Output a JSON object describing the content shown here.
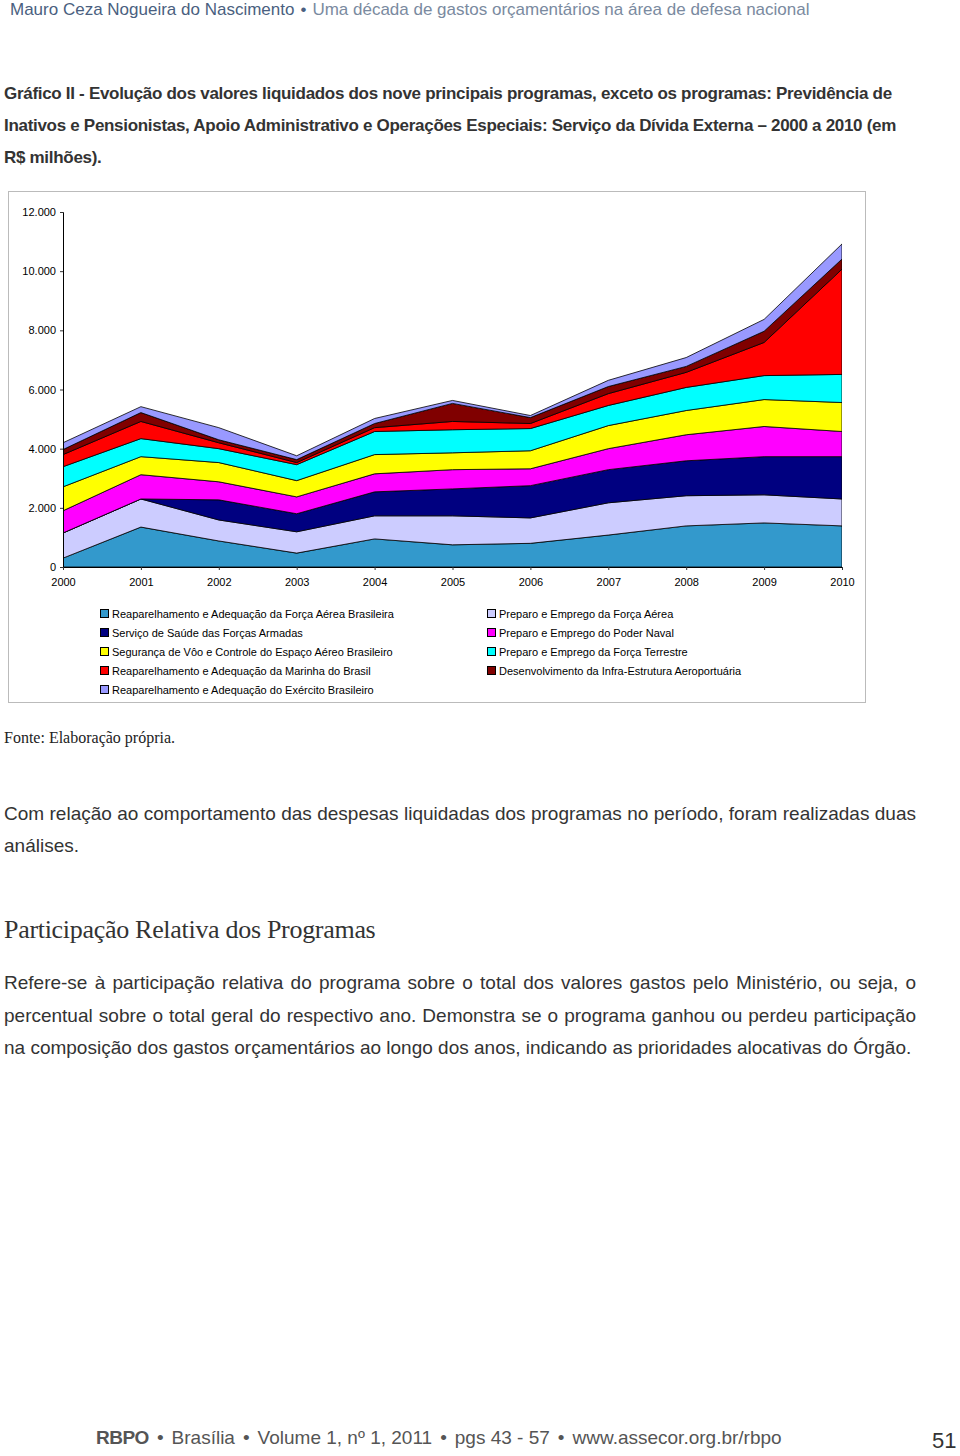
{
  "header": {
    "items": [
      "Mauro Ceza Nogueira do Nascimento",
      "Uma década de gastos orçamentários na área de defesa nacional"
    ],
    "separator": "•"
  },
  "figure": {
    "title": "Gráfico II - Evolução dos valores liquidados dos nove principais programas, exceto os programas: Previdência de Inativos e Pensionistas, Apoio Administrativo e Operações Especiais: Serviço da Dívida Externa – 2000 a 2010 (em R$ milhões).",
    "source": "Fonte: Elaboração própria."
  },
  "chart_data": {
    "type": "area",
    "stacked": true,
    "categories": [
      "2000",
      "2001",
      "2002",
      "2003",
      "2004",
      "2005",
      "2006",
      "2007",
      "2008",
      "2009",
      "2010"
    ],
    "ylim": [
      0,
      12000
    ],
    "yticks": [
      0,
      {
        "value": 2000,
        "label": "2.000"
      },
      {
        "value": 4000,
        "label": "4.000"
      },
      {
        "value": 6000,
        "label": "6.000"
      },
      {
        "value": 8000,
        "label": "8.000"
      },
      {
        "value": 10000,
        "label": "10.000"
      },
      {
        "value": 12000,
        "label": "12.000"
      }
    ],
    "series": [
      {
        "name": "Reaparelhamento e Adequação da Força Aérea Brasileira",
        "color": "#3399cc",
        "values": [
          300,
          1350,
          880,
          470,
          950,
          750,
          800,
          1080,
          1390,
          1490,
          1390
        ]
      },
      {
        "name": "Preparo e Emprego da Força Aérea",
        "color": "#ccccff",
        "values": [
          850,
          950,
          710,
          720,
          780,
          980,
          860,
          1090,
          1020,
          950,
          910
        ]
      },
      {
        "name": "Serviço de Saúde das Forças Armadas",
        "color": "#000080",
        "values": [
          0,
          0,
          680,
          610,
          810,
          910,
          1090,
          1120,
          1180,
          1290,
          1430
        ]
      },
      {
        "name": "Preparo e Emprego do Poder Naval",
        "color": "#ff00ff",
        "values": [
          750,
          820,
          610,
          570,
          610,
          650,
          570,
          710,
          880,
          1020,
          850
        ]
      },
      {
        "name": "Segurança de Vôo e Controle do Espaço Aéreo Brasileiro",
        "color": "#ffff00",
        "values": [
          810,
          610,
          650,
          550,
          650,
          570,
          610,
          780,
          820,
          910,
          980
        ]
      },
      {
        "name": "Preparo e Emprego da Força Terrestre",
        "color": "#00ffff",
        "values": [
          680,
          610,
          470,
          540,
          780,
          780,
          750,
          680,
          780,
          810,
          950
        ]
      },
      {
        "name": "Reaparelhamento e Adequação da Marinha do Brasil",
        "color": "#ff0000",
        "values": [
          410,
          580,
          200,
          70,
          130,
          280,
          170,
          400,
          510,
          1120,
          3560
        ]
      },
      {
        "name": "Desenvolvimento da Infra-Estrutura Aeroportuária",
        "color": "#800000",
        "values": [
          170,
          300,
          100,
          100,
          140,
          610,
          200,
          240,
          200,
          380,
          340
        ]
      },
      {
        "name": "Reaparelhamento e Adequação do Exército Brasileiro",
        "color": "#9999ff",
        "values": [
          230,
          200,
          410,
          130,
          170,
          100,
          70,
          210,
          300,
          400,
          510
        ]
      }
    ]
  },
  "body": {
    "intro": "Com relação ao comportamento das despesas liquidadas dos programas no período, foram realizadas duas análises.",
    "heading": "Participação Relativa dos Programas",
    "paragraph": "Refere-se à participação relativa do programa sobre o total dos valores gastos pelo Ministério, ou seja, o percentual sobre o total geral do respectivo ano. Demonstra se o programa ganhou ou perdeu participação na composição dos gastos orçamentários ao longo dos anos, indicando as prioridades alocativas do Órgão."
  },
  "footer": {
    "journal": "RBPO",
    "items": [
      "Brasília",
      "Volume 1, nº 1, 2011",
      "pgs 43 - 57",
      "www.assecor.org.br/rbpo"
    ],
    "separator": "•",
    "page": "51"
  }
}
